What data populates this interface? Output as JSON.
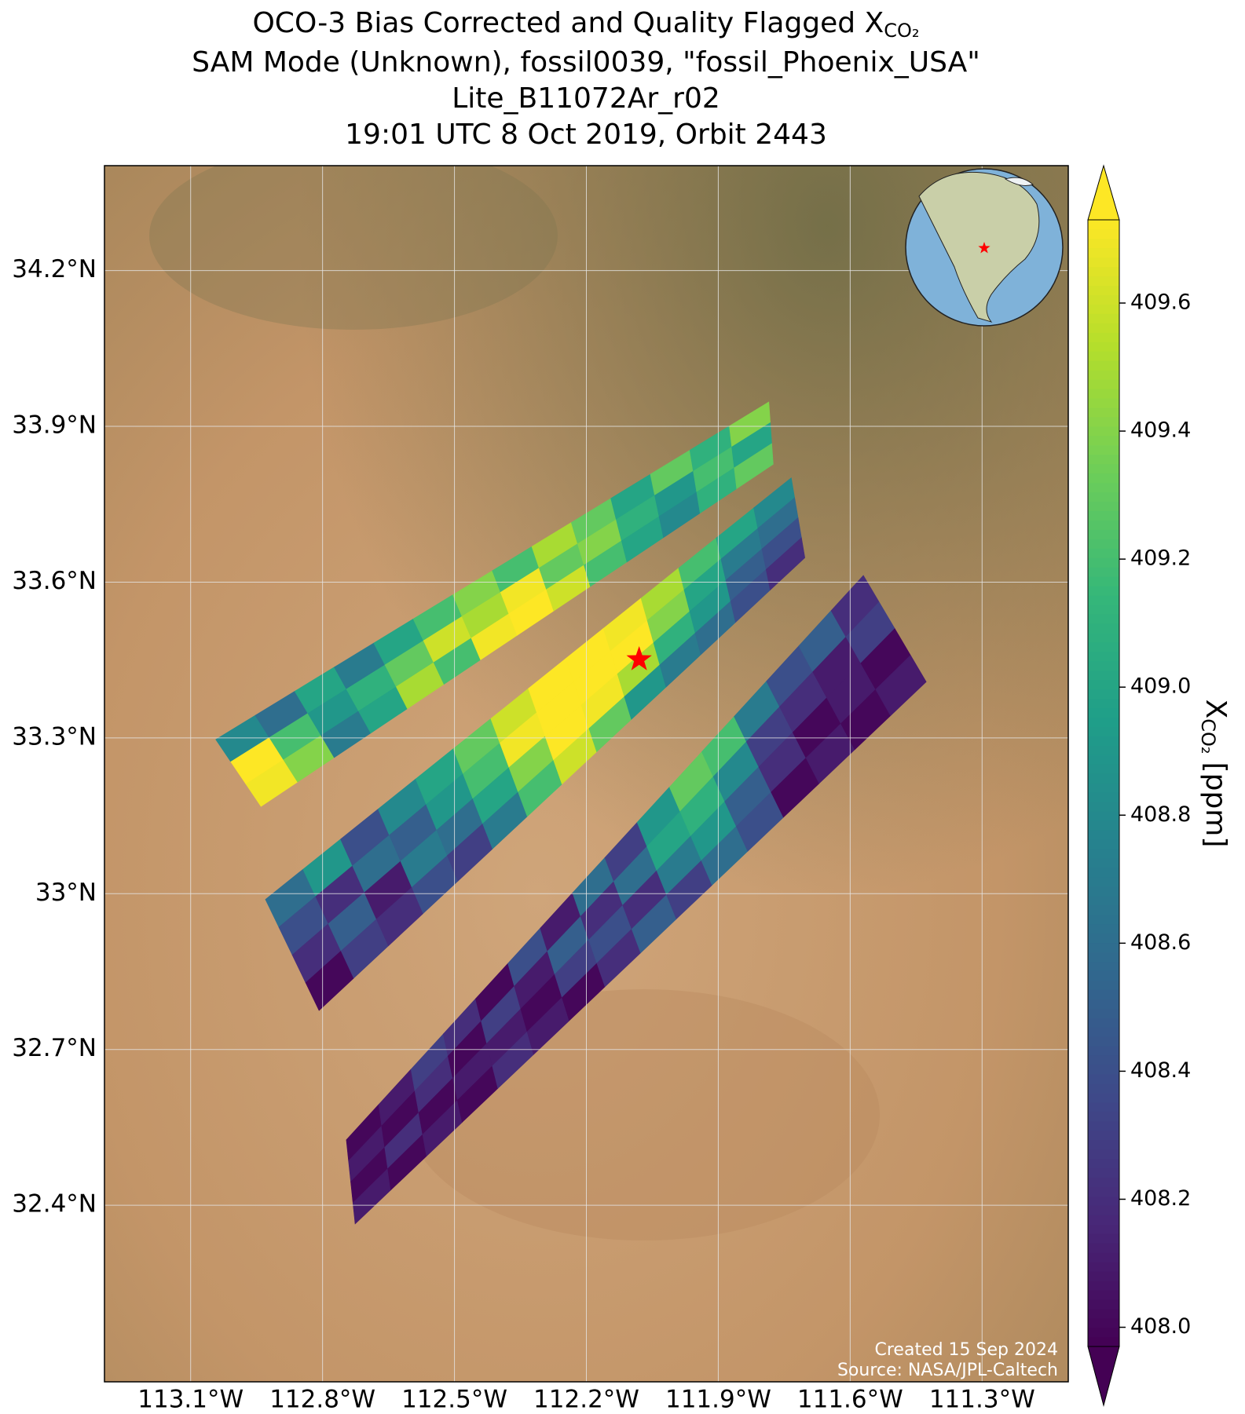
{
  "chart_data": {
    "type": "map",
    "title": [
      "OCO-3 Bias Corrected and Quality Flagged X",
      "SAM Mode (Unknown), fossil0039, \"fossil_Phoenix_USA\"",
      "Lite_B11072Ar_r02",
      "19:01 UTC 8 Oct 2019, Orbit 2443"
    ],
    "title_subscript": "CO₂",
    "xlim": [
      -113.296,
      -111.104
    ],
    "ylim": [
      32.06,
      34.402
    ],
    "xticks": [
      {
        "value": -113.1,
        "label": "113.1°W"
      },
      {
        "value": -112.8,
        "label": "112.8°W"
      },
      {
        "value": -112.5,
        "label": "112.5°W"
      },
      {
        "value": -112.2,
        "label": "112.2°W"
      },
      {
        "value": -111.9,
        "label": "111.9°W"
      },
      {
        "value": -111.6,
        "label": "111.6°W"
      },
      {
        "value": -111.3,
        "label": "111.3°W"
      }
    ],
    "yticks": [
      {
        "value": 32.4,
        "label": "32.4°N"
      },
      {
        "value": 32.7,
        "label": "32.7°N"
      },
      {
        "value": 33.0,
        "label": "33°N"
      },
      {
        "value": 33.3,
        "label": "33.3°N"
      },
      {
        "value": 33.6,
        "label": "33.6°N"
      },
      {
        "value": 33.9,
        "label": "33.9°N"
      },
      {
        "value": 34.2,
        "label": "34.2°N"
      }
    ],
    "grid": true,
    "colorbar": {
      "colormap": "viridis",
      "extend": "both",
      "clim": [
        407.97,
        409.73
      ],
      "ticks": [
        {
          "value": 408.0,
          "label": "408.0"
        },
        408.2,
        408.4,
        408.6,
        408.8,
        {
          "value": 409.0,
          "label": "409.0"
        },
        409.2,
        409.4,
        409.6
      ],
      "label": "X",
      "label_subscript": "CO₂",
      "label_unit": "[ppm]"
    },
    "swaths": [
      {
        "corners": [
          [
            -112.746,
            32.526
          ],
          [
            -111.57,
            33.613
          ],
          [
            -111.427,
            33.408
          ],
          [
            -112.726,
            32.364
          ]
        ],
        "values": [
          [
            408.0,
            408.1,
            408.3,
            408.2,
            408.0,
            408.4,
            408.1,
            408.6,
            408.3,
            408.9,
            409.3,
            409.2,
            408.7,
            408.4,
            408.5,
            408.2
          ],
          [
            408.1,
            408.0,
            408.2,
            408.0,
            408.3,
            408.1,
            408.5,
            408.2,
            408.6,
            409.0,
            409.1,
            408.8,
            408.3,
            408.2,
            408.1,
            408.3
          ],
          [
            408.0,
            408.2,
            408.0,
            408.1,
            408.1,
            408.0,
            408.3,
            408.4,
            408.2,
            408.7,
            408.9,
            408.5,
            408.2,
            408.0,
            408.1,
            408.0
          ],
          [
            408.1,
            408.0,
            408.1,
            408.0,
            408.2,
            408.1,
            408.0,
            408.2,
            408.5,
            408.3,
            408.6,
            408.4,
            408.0,
            408.1,
            408.0,
            408.1
          ]
        ]
      },
      {
        "corners": [
          [
            -112.93,
            32.989
          ],
          [
            -111.734,
            33.801
          ],
          [
            -111.703,
            33.647
          ],
          [
            -112.808,
            32.775
          ]
        ],
        "values": [
          [
            408.6,
            408.9,
            408.4,
            408.8,
            409.0,
            409.3,
            409.6,
            409.8,
            409.8,
            409.7,
            409.5,
            409.2,
            409.0,
            408.8
          ],
          [
            408.4,
            408.2,
            408.6,
            408.5,
            408.9,
            409.2,
            409.7,
            409.8,
            409.8,
            409.8,
            409.4,
            409.0,
            408.7,
            408.6
          ],
          [
            408.2,
            408.5,
            408.1,
            408.7,
            408.6,
            409.0,
            409.4,
            409.8,
            409.7,
            409.5,
            409.1,
            408.9,
            408.5,
            408.4
          ],
          [
            408.0,
            408.3,
            408.2,
            408.4,
            408.3,
            408.7,
            409.2,
            409.6,
            409.3,
            408.9,
            408.7,
            408.6,
            408.4,
            408.2
          ]
        ]
      },
      {
        "corners": [
          [
            -113.043,
            33.297
          ],
          [
            -111.785,
            33.947
          ],
          [
            -111.775,
            33.827
          ],
          [
            -112.94,
            33.168
          ]
        ],
        "values": [
          [
            408.8,
            408.6,
            409.0,
            408.7,
            409.0,
            409.2,
            409.4,
            409.2,
            409.5,
            409.3,
            409.0,
            409.3,
            409.1,
            409.4
          ],
          [
            409.8,
            409.2,
            408.9,
            409.1,
            409.3,
            409.6,
            409.5,
            409.7,
            409.3,
            409.4,
            409.1,
            408.9,
            409.2,
            409.0
          ],
          [
            409.7,
            409.4,
            408.7,
            409.0,
            409.5,
            409.2,
            409.7,
            409.8,
            409.6,
            409.2,
            409.0,
            408.8,
            409.1,
            409.3
          ]
        ]
      }
    ],
    "target": {
      "lon": -112.08,
      "lat": 33.451,
      "color": "#ff0000"
    },
    "footer": [
      "Created 15 Sep 2024",
      "Source: NASA/JPL-Caltech"
    ]
  }
}
